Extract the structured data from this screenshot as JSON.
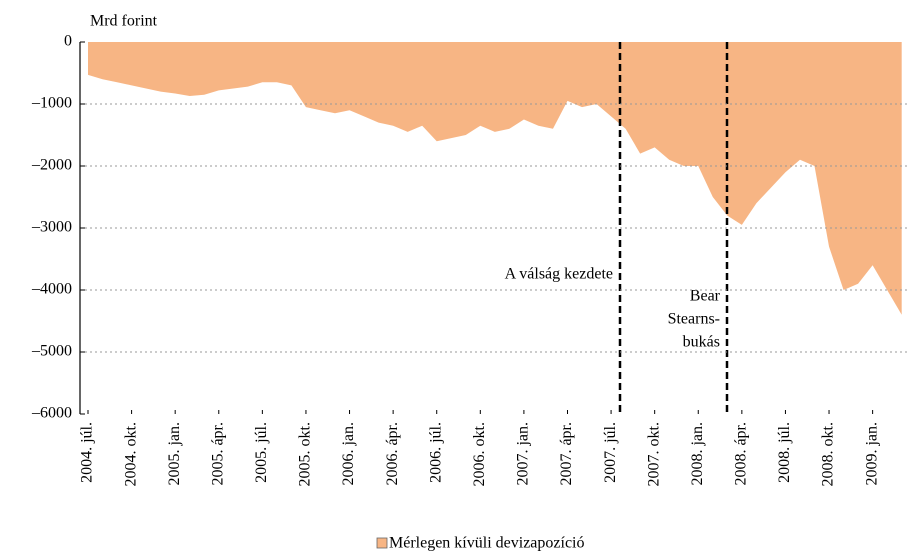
{
  "chart_data": {
    "type": "area",
    "y_label": "Mrd forint",
    "categories": [
      "2004. júl.",
      null,
      null,
      "2004. okt.",
      null,
      null,
      "2005. jan.",
      null,
      null,
      "2005. ápr.",
      null,
      null,
      "2005. júl.",
      null,
      null,
      "2005. okt.",
      null,
      null,
      "2006. jan.",
      null,
      null,
      "2006. ápr.",
      null,
      null,
      "2006. júl.",
      null,
      null,
      "2006. okt.",
      null,
      null,
      "2007. jan.",
      null,
      null,
      "2007. ápr.",
      null,
      null,
      "2007. júl.",
      null,
      null,
      "2007. okt.",
      null,
      null,
      "2008. jan.",
      null,
      null,
      "2008. ápr.",
      null,
      null,
      "2008. júl.",
      null,
      null,
      "2008. okt.",
      null,
      null,
      "2009. jan.",
      null,
      null
    ],
    "series": [
      {
        "name": "Mérlegen kívüli devizapozíció",
        "color": "#f7b584",
        "values": [
          -530,
          -600,
          -650,
          -700,
          -750,
          -800,
          -830,
          -870,
          -850,
          -780,
          -750,
          -720,
          -650,
          -650,
          -700,
          -1050,
          -1100,
          -1150,
          -1100,
          -1200,
          -1300,
          -1350,
          -1450,
          -1350,
          -1600,
          -1550,
          -1500,
          -1350,
          -1450,
          -1400,
          -1250,
          -1350,
          -1400,
          -950,
          -1050,
          -1000,
          -1200,
          -1400,
          -1800,
          -1700,
          -1900,
          -2000,
          -2000,
          -2500,
          -2800,
          -2950,
          -2600,
          -2350,
          -2100,
          -1900,
          -2000,
          -3300,
          -4000,
          -3900,
          -3600,
          -4000,
          -4400
        ]
      }
    ],
    "ylim": [
      -6000,
      0
    ],
    "yticks": [
      {
        "value": -6000,
        "label": "–6000"
      },
      {
        "value": -5000,
        "label": "–5000"
      },
      {
        "value": -4000,
        "label": "–4000"
      },
      {
        "value": -3000,
        "label": "–3000"
      },
      {
        "value": -2000,
        "label": "–2000"
      },
      {
        "value": -1000,
        "label": "–1000"
      },
      0
    ],
    "grid": true,
    "annotations": [
      "A válság kezdete",
      "Bear",
      "Stearns-",
      "bukás"
    ]
  }
}
